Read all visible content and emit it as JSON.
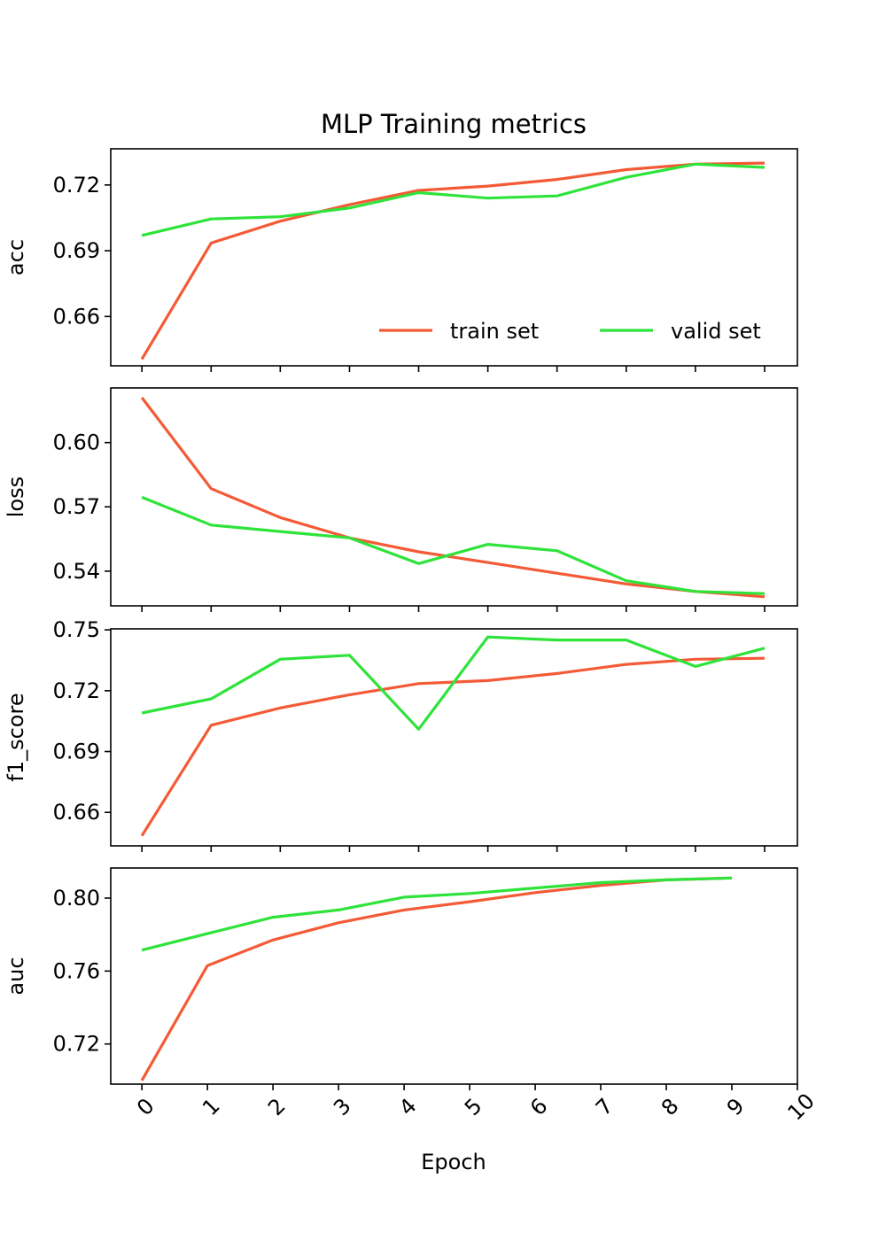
{
  "chart_data": {
    "type": "line",
    "title": "MLP Training metrics",
    "xlabel": "Epoch",
    "x_ticks": [
      0,
      1,
      2,
      3,
      4,
      5,
      6,
      7,
      8,
      9,
      10
    ],
    "legend": {
      "placement": "lower-right",
      "entries": [
        "train set",
        "valid set"
      ]
    },
    "colors": {
      "train": "#f45a36",
      "valid": "#2ee33a"
    },
    "grid": false,
    "panels": [
      {
        "ylabel": "acc",
        "ylim": [
          0.6375,
          0.7365
        ],
        "yticks": [
          0.66,
          0.69,
          0.72
        ],
        "ytick_labels": [
          "0.66",
          "0.69",
          "0.72"
        ],
        "series": [
          {
            "name": "train set",
            "x": [
              0,
              1.056,
              2.111,
              3.167,
              4.222,
              5.278,
              6.333,
              7.389,
              8.444,
              9.5
            ],
            "y": [
              0.6405,
              0.6935,
              0.7035,
              0.711,
              0.7175,
              0.7195,
              0.7225,
              0.727,
              0.7295,
              0.73
            ]
          },
          {
            "name": "valid set",
            "x": [
              0,
              1.056,
              2.111,
              3.167,
              4.222,
              5.278,
              6.333,
              7.389,
              8.444,
              9.5
            ],
            "y": [
              0.697,
              0.7045,
              0.7055,
              0.7095,
              0.7165,
              0.714,
              0.715,
              0.7235,
              0.7295,
              0.728
            ]
          }
        ]
      },
      {
        "ylabel": "loss",
        "ylim": [
          0.5238,
          0.6255
        ],
        "yticks": [
          0.54,
          0.57,
          0.6
        ],
        "ytick_labels": [
          "0.54",
          "0.57",
          "0.60"
        ],
        "series": [
          {
            "name": "train set",
            "x": [
              0,
              1.056,
              2.111,
              3.167,
              4.222,
              5.278,
              6.333,
              7.389,
              8.444,
              9.5
            ],
            "y": [
              0.621,
              0.5785,
              0.565,
              0.5555,
              0.549,
              0.544,
              0.539,
              0.534,
              0.5305,
              0.528
            ]
          },
          {
            "name": "valid set",
            "x": [
              0,
              1.056,
              2.111,
              3.167,
              4.222,
              5.278,
              6.333,
              7.389,
              8.444,
              9.5
            ],
            "y": [
              0.5745,
              0.5615,
              0.5585,
              0.5555,
              0.5435,
              0.5525,
              0.5495,
              0.5355,
              0.5305,
              0.5295
            ]
          }
        ]
      },
      {
        "ylabel": "f1_score",
        "ylim": [
          0.6435,
          0.7505
        ],
        "yticks": [
          0.66,
          0.69,
          0.72,
          0.75
        ],
        "ytick_labels": [
          "0.66",
          "0.69",
          "0.72",
          "0.75"
        ],
        "series": [
          {
            "name": "train set",
            "x": [
              0,
              1.056,
              2.111,
              3.167,
              4.222,
              5.278,
              6.333,
              7.389,
              8.444,
              9.5
            ],
            "y": [
              0.6485,
              0.703,
              0.7115,
              0.718,
              0.7235,
              0.725,
              0.7285,
              0.733,
              0.7355,
              0.736
            ]
          },
          {
            "name": "valid set",
            "x": [
              0,
              1.056,
              2.111,
              3.167,
              4.222,
              5.278,
              6.333,
              7.389,
              8.444,
              9.5
            ],
            "y": [
              0.709,
              0.716,
              0.7355,
              0.7375,
              0.701,
              0.7465,
              0.745,
              0.745,
              0.732,
              0.741
            ]
          }
        ]
      },
      {
        "ylabel": "auc",
        "ylim": [
          0.698,
          0.8165
        ],
        "yticks": [
          0.72,
          0.76,
          0.8
        ],
        "ytick_labels": [
          "0.72",
          "0.76",
          "0.80"
        ],
        "series": [
          {
            "name": "train set",
            "x": [
              0,
              1,
              2,
              3,
              4,
              5,
              6,
              7,
              8,
              9
            ],
            "y": [
              0.7,
              0.763,
              0.777,
              0.7865,
              0.7935,
              0.798,
              0.803,
              0.807,
              0.81,
              0.811
            ]
          },
          {
            "name": "valid set",
            "x": [
              0,
              1,
              2,
              3,
              4,
              5,
              6,
              7,
              8,
              9
            ],
            "y": [
              0.7715,
              0.7805,
              0.7895,
              0.7935,
              0.8005,
              0.8025,
              0.8055,
              0.8085,
              0.81,
              0.811
            ]
          }
        ]
      }
    ]
  }
}
